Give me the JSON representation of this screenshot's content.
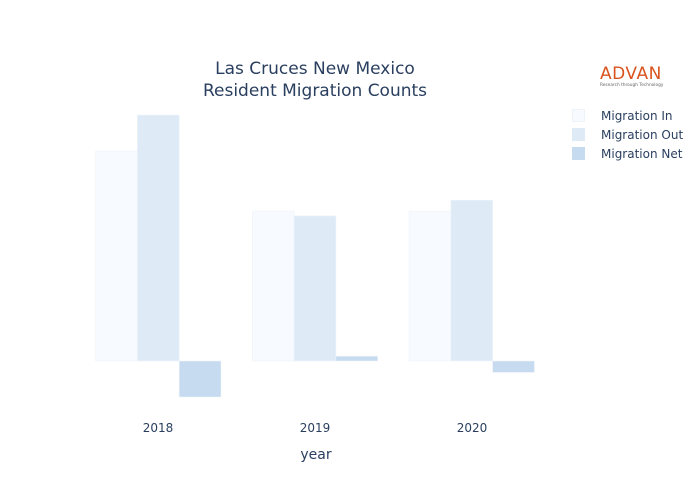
{
  "chart_data": {
    "type": "bar",
    "title_lines": [
      "Las Cruces New Mexico",
      "Resident Migration Counts"
    ],
    "xlabel": "year",
    "ylabel": "",
    "categories": [
      "2018",
      "2019",
      "2020"
    ],
    "series": [
      {
        "name": "Migration In",
        "color": "#f7fbff",
        "values": [
          3500,
          2500,
          2490
        ]
      },
      {
        "name": "Migration Out",
        "color": "#deebf7",
        "values": [
          4100,
          2420,
          2680
        ]
      },
      {
        "name": "Migration Net",
        "color": "#c6dbef",
        "values": [
          -600,
          80,
          -190
        ]
      }
    ],
    "ylim": [
      -900,
      4600
    ],
    "grid": false,
    "legend_position": "top-right"
  },
  "logo": {
    "name": "ADVAN",
    "tagline": "Research through Technology"
  }
}
